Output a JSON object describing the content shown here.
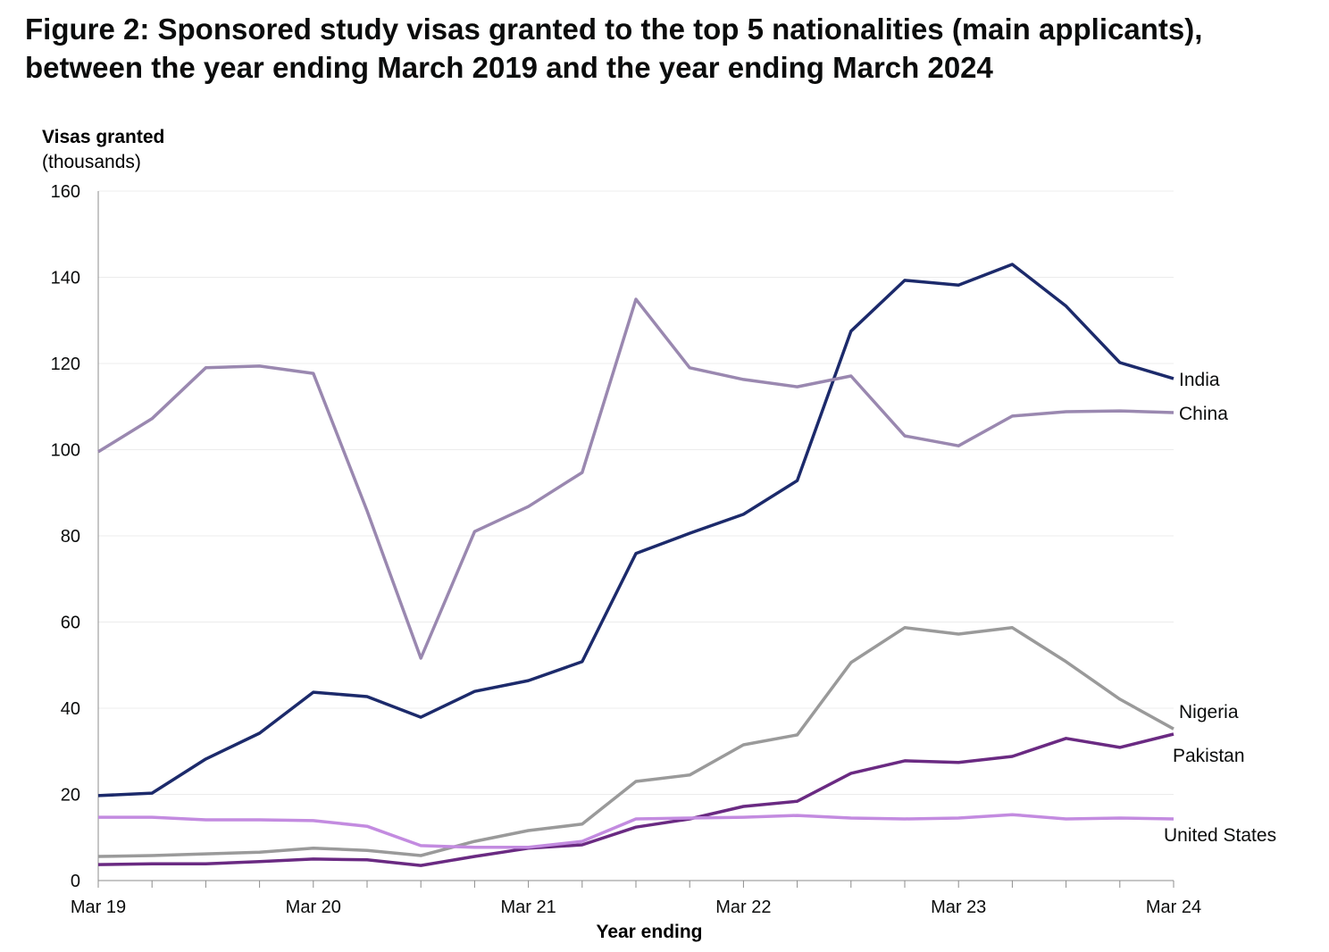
{
  "chart_data": {
    "type": "line",
    "title": "Figure 2: Sponsored study visas granted to the top 5 nationalities (main applicants), between the year ending March 2019 and the year ending March 2024",
    "ylabel": "Visas granted",
    "ylabel_unit": "(thousands)",
    "xlabel": "Year ending",
    "ylim": [
      0,
      160
    ],
    "yticks": [
      0,
      20,
      40,
      60,
      80,
      100,
      120,
      140,
      160
    ],
    "x_tick_labels": [
      "Mar 19",
      "Mar 20",
      "Mar 21",
      "Mar 22",
      "Mar 23",
      "Mar 24"
    ],
    "x": [
      "Mar 19",
      "Jun 19",
      "Sep 19",
      "Dec 19",
      "Mar 20",
      "Jun 20",
      "Sep 20",
      "Dec 20",
      "Mar 21",
      "Jun 21",
      "Sep 21",
      "Dec 21",
      "Mar 22",
      "Jun 22",
      "Sep 22",
      "Dec 22",
      "Mar 23",
      "Jun 23",
      "Sep 23",
      "Dec 23",
      "Mar 24"
    ],
    "grid": "horizontal",
    "legend": "direct labels at right",
    "series": [
      {
        "name": "India",
        "color": "#1c2a6b",
        "values": [
          19.7,
          20.3,
          28.2,
          34.2,
          43.7,
          42.7,
          37.9,
          43.9,
          46.4,
          50.8,
          75.9,
          80.6,
          85.0,
          92.8,
          127.5,
          139.3,
          138.2,
          143.0,
          133.3,
          120.2,
          116.5
        ]
      },
      {
        "name": "China",
        "color": "#9a88b0",
        "values": [
          99.5,
          107.2,
          119.0,
          119.4,
          117.7,
          85.8,
          51.6,
          81.0,
          86.8,
          94.7,
          134.9,
          119.0,
          116.3,
          114.6,
          117.1,
          103.2,
          100.9,
          107.8,
          108.8,
          109.0,
          108.6
        ]
      },
      {
        "name": "Nigeria",
        "color": "#9a9a9a",
        "values": [
          5.6,
          5.8,
          6.2,
          6.6,
          7.5,
          7.0,
          5.8,
          9.1,
          11.6,
          13.1,
          23.0,
          24.5,
          31.5,
          33.8,
          50.6,
          58.7,
          57.2,
          58.7,
          50.8,
          42.1,
          35.2
        ]
      },
      {
        "name": "Pakistan",
        "color": "#6a2a82",
        "values": [
          3.7,
          3.9,
          3.9,
          4.4,
          5.0,
          4.8,
          3.5,
          5.6,
          7.5,
          8.3,
          12.4,
          14.3,
          17.2,
          18.4,
          24.9,
          27.8,
          27.4,
          28.8,
          33.0,
          30.9,
          34.0
        ]
      },
      {
        "name": "United States",
        "color": "#c38be0",
        "values": [
          14.7,
          14.7,
          14.1,
          14.1,
          13.9,
          12.6,
          8.1,
          7.7,
          7.7,
          9.1,
          14.3,
          14.5,
          14.7,
          15.1,
          14.5,
          14.3,
          14.5,
          15.3,
          14.3,
          14.5,
          14.3
        ]
      }
    ]
  }
}
